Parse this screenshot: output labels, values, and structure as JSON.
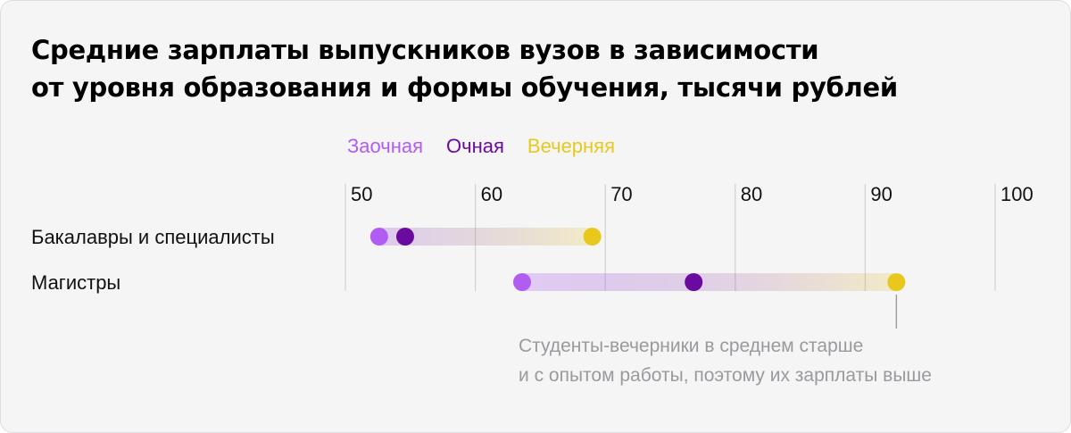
{
  "chart_data": {
    "type": "dot",
    "title_lines": [
      "Средние зарплаты выпускников вузов в зависимости",
      "от уровня образования и формы обучения, тысячи рублей"
    ],
    "xlim": [
      50,
      100
    ],
    "xticks": [
      50,
      60,
      70,
      80,
      90,
      100
    ],
    "categories": [
      "Бакалавры и специалисты",
      "Магистры"
    ],
    "series": [
      {
        "name": "Заочная",
        "color": "#b15cf3",
        "values": [
          52.6,
          63.6
        ]
      },
      {
        "name": "Очная",
        "color": "#6a0a9e",
        "values": [
          54.6,
          76.8
        ]
      },
      {
        "name": "Вечерняя",
        "color": "#e8c81d",
        "values": [
          69.0,
          92.4
        ]
      }
    ],
    "grid": true,
    "legend_position": "top",
    "annotation": {
      "lines": [
        "Студенты-вечерники в среднем старше",
        "и с опытом работы, поэтому их зарплаты выше"
      ],
      "category": "Магистры",
      "series": "Вечерняя"
    }
  }
}
